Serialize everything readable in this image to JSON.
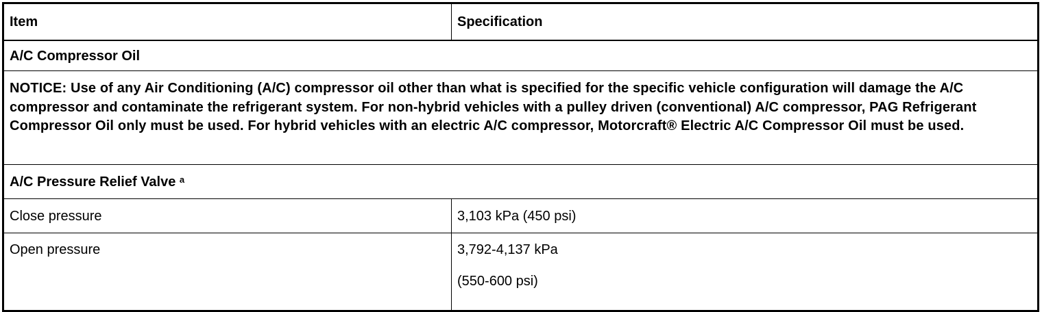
{
  "table": {
    "headers": [
      "Item",
      "Specification"
    ],
    "section1": "A/C Compressor Oil",
    "notice": "NOTICE: Use of any Air Conditioning (A/C) compressor oil other than what is specified for the specific vehicle configuration will damage the A/C compressor and contaminate the refrigerant system. For non-hybrid vehicles with a pulley driven (conventional) A/C compressor, PAG Refrigerant Compressor Oil only must be used. For hybrid vehicles with an electric A/C compressor, Motorcraft® Electric A/C Compressor Oil must be used.",
    "section2": "A/C Pressure Relief Valve",
    "section2_footnote": "a",
    "rows": [
      {
        "item": "Close pressure",
        "spec": [
          "3,103 kPa (450 psi)"
        ]
      },
      {
        "item": "Open pressure",
        "spec": [
          "3,792-4,137 kPa",
          "(550-600 psi)"
        ]
      }
    ]
  }
}
